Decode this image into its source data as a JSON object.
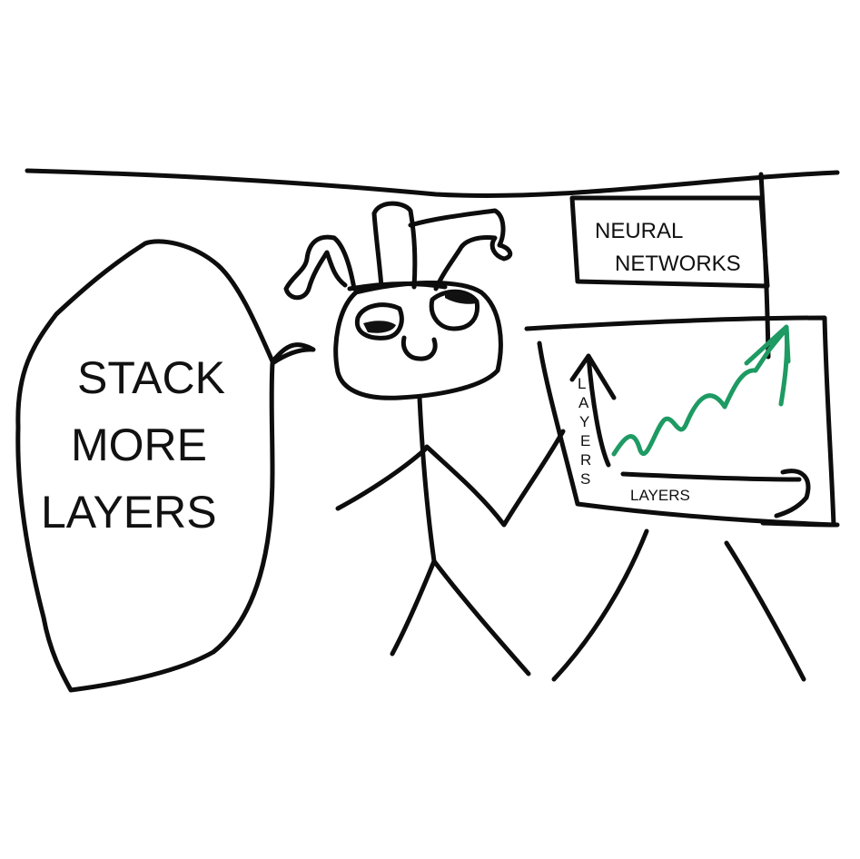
{
  "speech_bubble": {
    "lines": [
      "STACK",
      "MORE",
      "LAYERS"
    ]
  },
  "sign": {
    "lines": [
      "NEURAL",
      "NETWORKS"
    ]
  },
  "chart": {
    "y_label_letters": [
      "L",
      "A",
      "Y",
      "E",
      "R",
      "S"
    ],
    "x_label": "LAYERS",
    "trend_color": "#1e9a63",
    "ink_color": "#0d0d0d"
  }
}
